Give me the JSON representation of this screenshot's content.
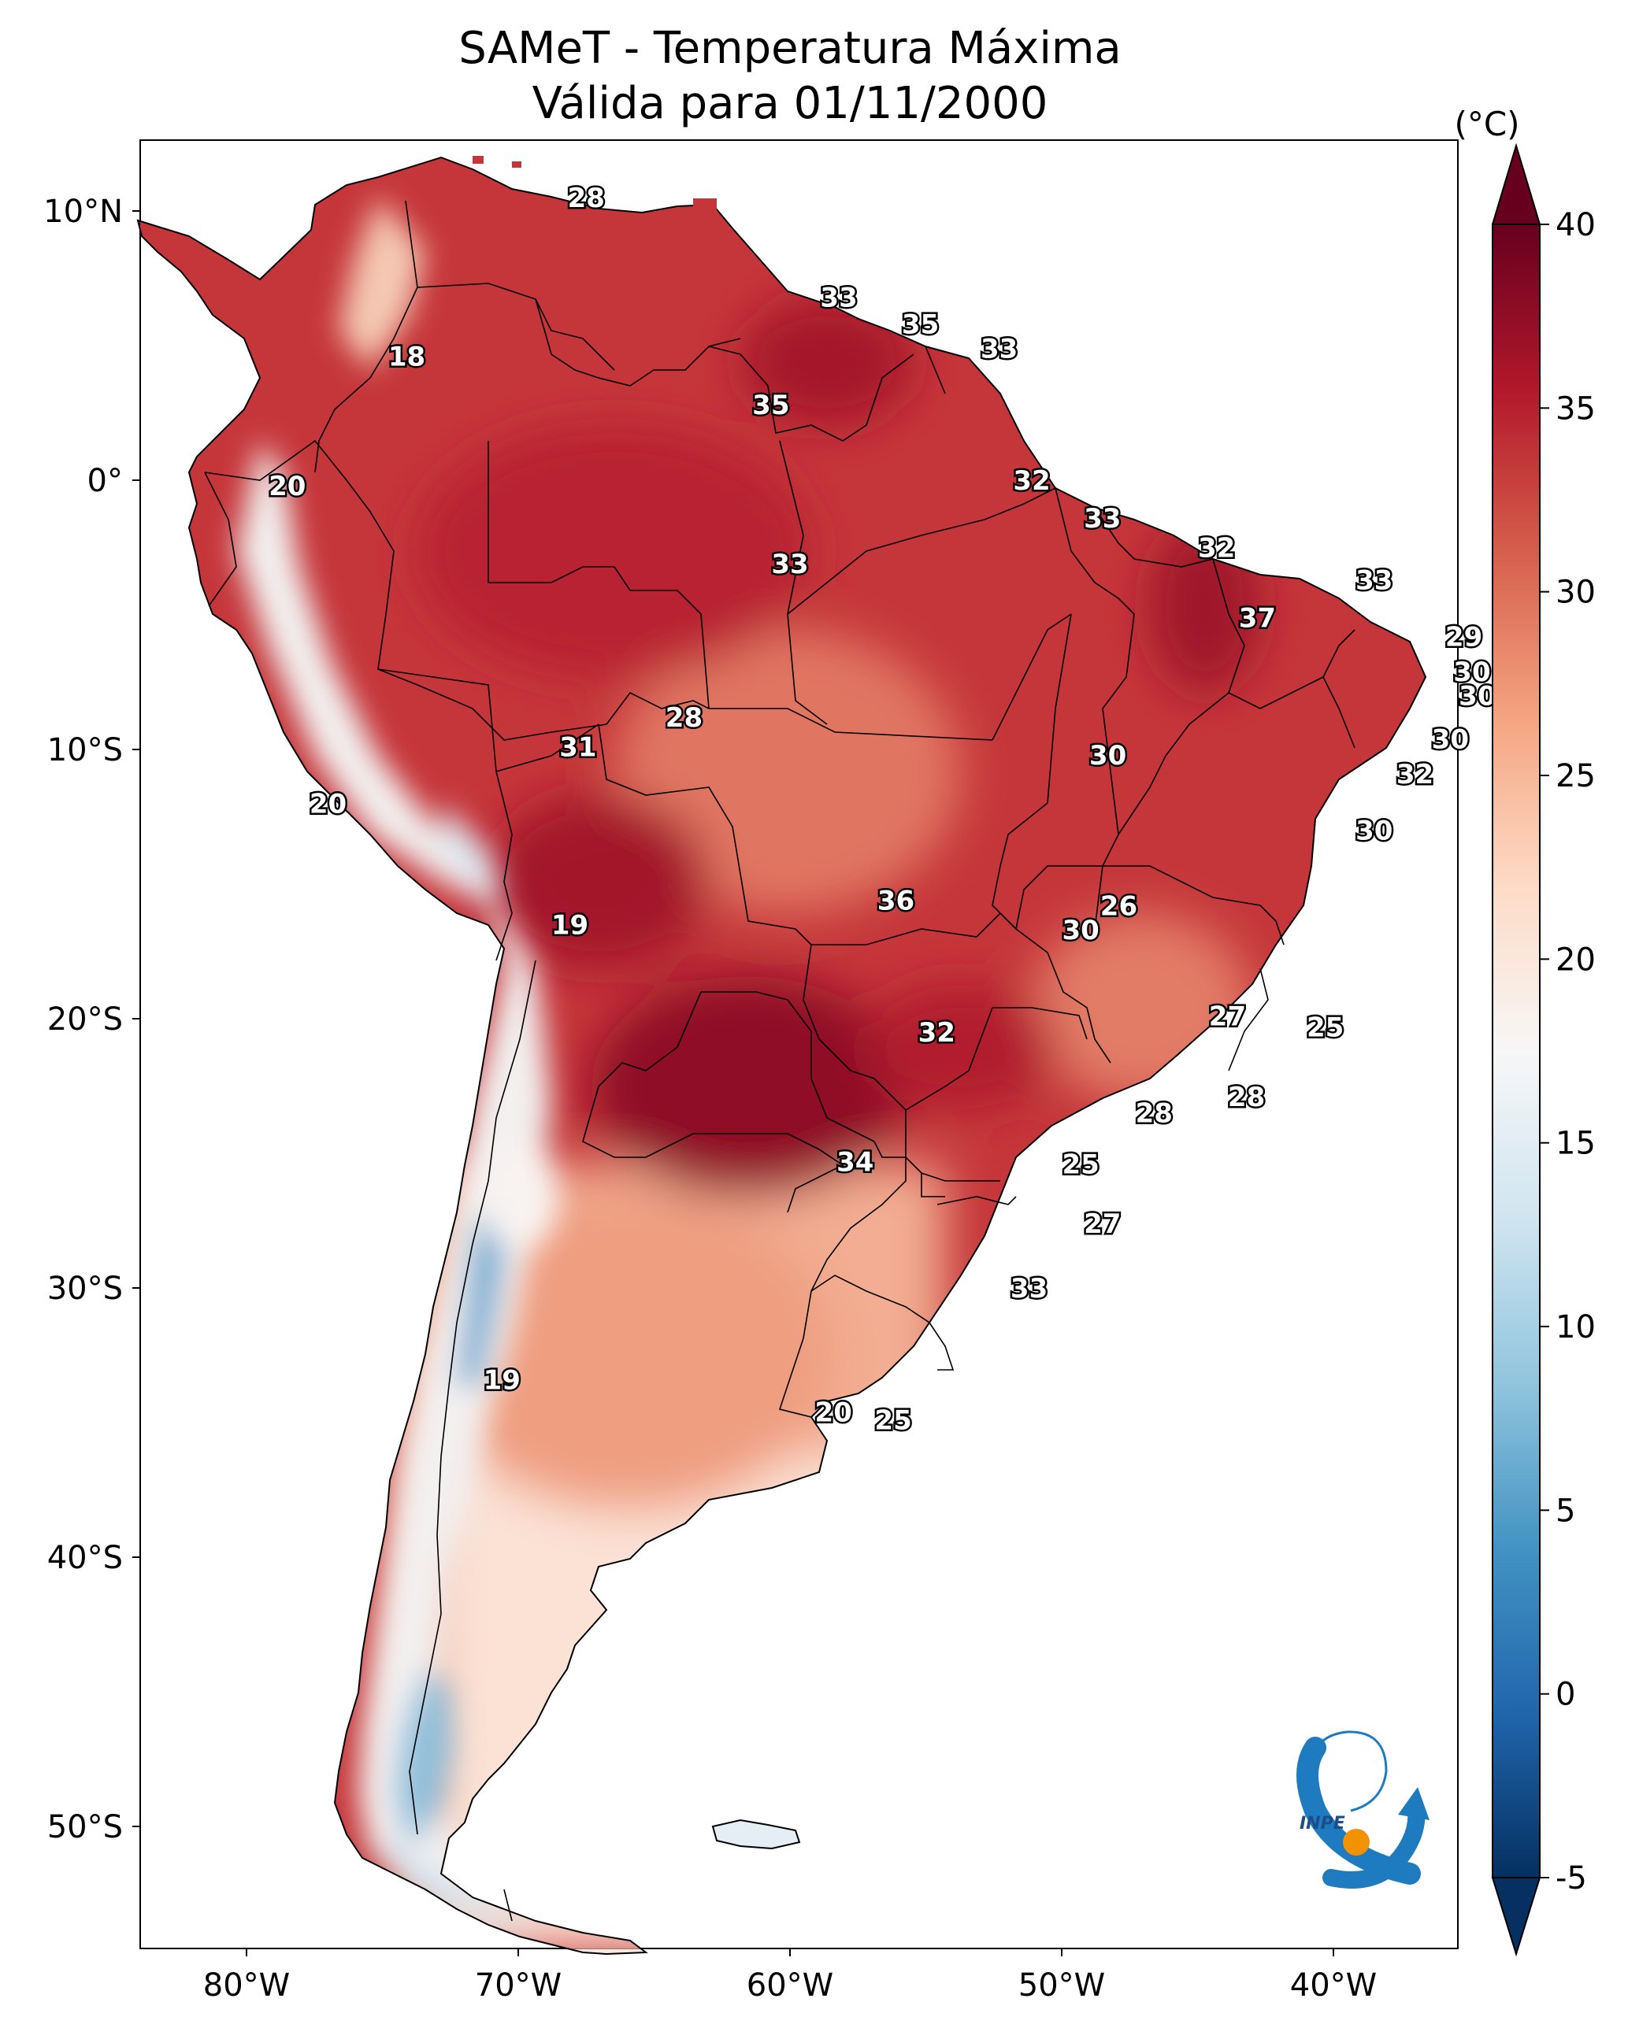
{
  "title": {
    "line1": "SAMeT - Temperatura Máxima",
    "line2": "Válida para 01/11/2000"
  },
  "axes": {
    "lat_ticks": [
      {
        "label": "10°N",
        "lat": 10
      },
      {
        "label": "0°",
        "lat": 0
      },
      {
        "label": "10°S",
        "lat": -10
      },
      {
        "label": "20°S",
        "lat": -20
      },
      {
        "label": "30°S",
        "lat": -30
      },
      {
        "label": "40°S",
        "lat": -40
      },
      {
        "label": "50°S",
        "lat": -50
      }
    ],
    "lon_ticks": [
      {
        "label": "80°W",
        "lon": -80
      },
      {
        "label": "70°W",
        "lon": -70
      },
      {
        "label": "60°W",
        "lon": -60
      },
      {
        "label": "50°W",
        "lon": -50
      },
      {
        "label": "40°W",
        "lon": -40
      }
    ],
    "lon_range": [
      -83,
      -34
    ],
    "lat_range": [
      -56,
      13
    ]
  },
  "colorbar": {
    "unit": "(°C)",
    "min": -5,
    "max": 40,
    "ticks": [
      {
        "label": "40",
        "value": 40
      },
      {
        "label": "35",
        "value": 35
      },
      {
        "label": "30",
        "value": 30
      },
      {
        "label": "25",
        "value": 25
      },
      {
        "label": "20",
        "value": 20
      },
      {
        "label": "15",
        "value": 15
      },
      {
        "label": "10",
        "value": 10
      },
      {
        "label": "5",
        "value": 5
      },
      {
        "label": "0",
        "value": 0
      },
      {
        "label": "-5",
        "value": -5
      }
    ],
    "colors": [
      "#053061",
      "#2166ac",
      "#4393c3",
      "#92c5de",
      "#d1e5f0",
      "#f7f7f7",
      "#fddbc7",
      "#f4a582",
      "#d6604d",
      "#b2182b",
      "#67001f"
    ]
  },
  "cities": [
    {
      "label": "28",
      "lon": -67.5,
      "lat": 10.5
    },
    {
      "label": "18",
      "lon": -74.1,
      "lat": 4.6
    },
    {
      "label": "33",
      "lon": -58.2,
      "lat": 6.8
    },
    {
      "label": "35",
      "lon": -55.2,
      "lat": 5.8
    },
    {
      "label": "33",
      "lon": -52.3,
      "lat": 4.9
    },
    {
      "label": "35",
      "lon": -60.7,
      "lat": 2.8
    },
    {
      "label": "20",
      "lon": -78.5,
      "lat": -0.2
    },
    {
      "label": "32",
      "lon": -51.1,
      "lat": 0.0
    },
    {
      "label": "33",
      "lon": -48.5,
      "lat": -1.4
    },
    {
      "label": "32",
      "lon": -44.3,
      "lat": -2.5
    },
    {
      "label": "33",
      "lon": -60.0,
      "lat": -3.1
    },
    {
      "label": "33",
      "lon": -38.5,
      "lat": -3.7
    },
    {
      "label": "37",
      "lon": -42.8,
      "lat": -5.1
    },
    {
      "label": "29",
      "lon": -35.2,
      "lat": -5.8
    },
    {
      "label": "30",
      "lon": -34.9,
      "lat": -7.1
    },
    {
      "label": "30",
      "lon": -34.7,
      "lat": -8.0
    },
    {
      "label": "28",
      "lon": -63.9,
      "lat": -8.8
    },
    {
      "label": "31",
      "lon": -67.8,
      "lat": -9.9
    },
    {
      "label": "30",
      "lon": -48.3,
      "lat": -10.2
    },
    {
      "label": "30",
      "lon": -35.7,
      "lat": -9.6
    },
    {
      "label": "32",
      "lon": -37.0,
      "lat": -10.9
    },
    {
      "label": "20",
      "lon": -77.0,
      "lat": -12.0
    },
    {
      "label": "30",
      "lon": -38.5,
      "lat": -13.0
    },
    {
      "label": "36",
      "lon": -56.1,
      "lat": -15.6
    },
    {
      "label": "26",
      "lon": -47.9,
      "lat": -15.8
    },
    {
      "label": "19",
      "lon": -68.1,
      "lat": -16.5
    },
    {
      "label": "30",
      "lon": -49.3,
      "lat": -16.7
    },
    {
      "label": "27",
      "lon": -43.9,
      "lat": -19.9
    },
    {
      "label": "25",
      "lon": -40.3,
      "lat": -20.3
    },
    {
      "label": "32",
      "lon": -54.6,
      "lat": -20.5
    },
    {
      "label": "28",
      "lon": -43.2,
      "lat": -22.9
    },
    {
      "label": "28",
      "lon": -46.6,
      "lat": -23.5
    },
    {
      "label": "34",
      "lon": -57.6,
      "lat": -25.3
    },
    {
      "label": "25",
      "lon": -49.3,
      "lat": -25.4
    },
    {
      "label": "27",
      "lon": -48.5,
      "lat": -27.6
    },
    {
      "label": "33",
      "lon": -51.2,
      "lat": -30.0
    },
    {
      "label": "19",
      "lon": -70.6,
      "lat": -33.4
    },
    {
      "label": "20",
      "lon": -58.4,
      "lat": -34.6
    },
    {
      "label": "25",
      "lon": -56.2,
      "lat": -34.9
    }
  ],
  "logo": {
    "text": "INPE"
  }
}
